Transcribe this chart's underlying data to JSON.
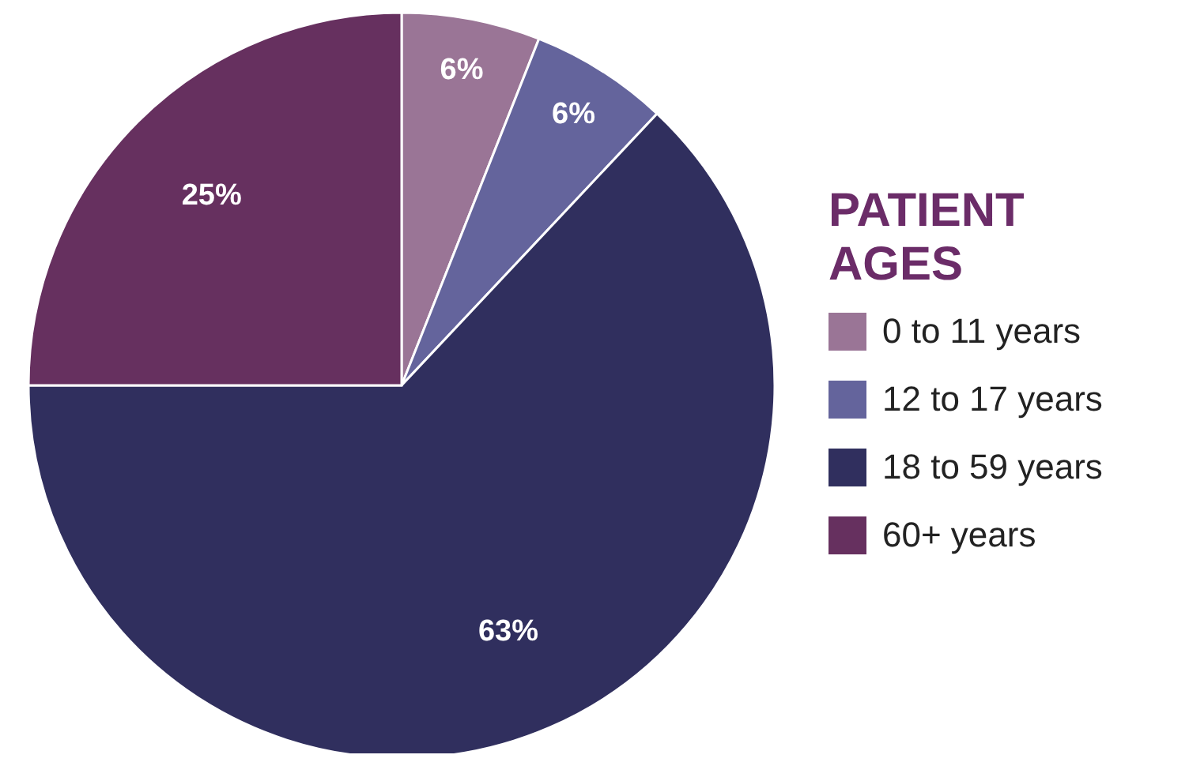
{
  "chart_data": {
    "type": "pie",
    "legend_title": "PATIENT AGES",
    "legend": "right",
    "categories": [
      "0 to 11 years",
      "12 to 17 years",
      "18 to 59 years",
      "60+ years"
    ],
    "values": [
      6,
      6,
      63,
      25
    ],
    "colors": [
      "#9a7596",
      "#64649c",
      "#302f5e",
      "#66305f"
    ],
    "value_labels": [
      "6%",
      "6%",
      "63%",
      "25%"
    ]
  }
}
